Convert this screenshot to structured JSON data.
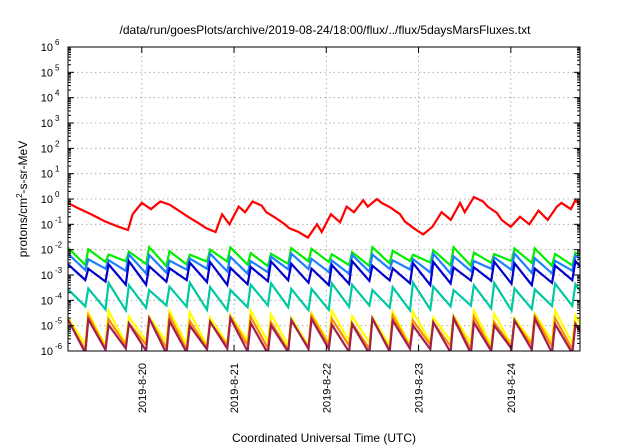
{
  "chart_data": {
    "type": "line",
    "title": "/data/run/goesPlots/archive/2019-08-24/18:00/flux/../flux/5daysMarsFluxes.txt",
    "xlabel": "Coordinated Universal Time (UTC)",
    "ylabel": "protons/cm2-s-sr-MeV",
    "ylabel_parts": {
      "pre": "protons/cm",
      "sup": "2",
      "post": "-s-sr-MeV"
    },
    "x_unit": "days since 2019-8-19 00:00 UTC",
    "xlim": [
      0.2,
      5.75
    ],
    "yscale": "log",
    "ylim": [
      1e-06,
      1000000.0
    ],
    "grid": true,
    "x_ticks": [
      {
        "x": 1,
        "label": "2019-8-20"
      },
      {
        "x": 2,
        "label": "2019-8-21"
      },
      {
        "x": 3,
        "label": "2019-8-22"
      },
      {
        "x": 4,
        "label": "2019-8-23"
      },
      {
        "x": 5,
        "label": "2019-8-24"
      }
    ],
    "y_ticks": [
      {
        "exp": -6,
        "base": "10",
        "sup": "-6"
      },
      {
        "exp": -5,
        "base": "10",
        "sup": "-5"
      },
      {
        "exp": -4,
        "base": "10",
        "sup": "-4"
      },
      {
        "exp": -3,
        "base": "10",
        "sup": "-3"
      },
      {
        "exp": -2,
        "base": "10",
        "sup": "-2"
      },
      {
        "exp": -1,
        "base": "10",
        "sup": "-1"
      },
      {
        "exp": 0,
        "base": "10",
        "sup": "0"
      },
      {
        "exp": 1,
        "base": "10",
        "sup": "1"
      },
      {
        "exp": 2,
        "base": "10",
        "sup": "2"
      },
      {
        "exp": 3,
        "base": "10",
        "sup": "3"
      },
      {
        "exp": 4,
        "base": "10",
        "sup": "4"
      },
      {
        "exp": 5,
        "base": "10",
        "sup": "5"
      },
      {
        "exp": 6,
        "base": "10",
        "sup": "6"
      }
    ],
    "series": [
      {
        "color": "#ff0000",
        "x": [
          0.2,
          0.3,
          0.45,
          0.6,
          0.75,
          0.85,
          0.9,
          1.0,
          1.1,
          1.2,
          1.3,
          1.4,
          1.5,
          1.6,
          1.7,
          1.8,
          1.87,
          1.95,
          2.05,
          2.12,
          2.2,
          2.3,
          2.35,
          2.45,
          2.55,
          2.6,
          2.7,
          2.8,
          2.9,
          2.95,
          3.05,
          3.15,
          3.22,
          3.3,
          3.4,
          3.45,
          3.55,
          3.6,
          3.7,
          3.8,
          3.85,
          3.95,
          4.05,
          4.15,
          4.25,
          4.35,
          4.45,
          4.5,
          4.6,
          4.7,
          4.75,
          4.85,
          4.9,
          5.0,
          5.1,
          5.2,
          5.3,
          5.4,
          5.5,
          5.55,
          5.65,
          5.7,
          5.75
        ],
        "values": [
          0.7,
          0.45,
          0.25,
          0.13,
          0.08,
          0.06,
          0.25,
          0.7,
          0.4,
          0.8,
          0.6,
          0.35,
          0.2,
          0.12,
          0.07,
          0.05,
          0.25,
          0.1,
          0.5,
          0.3,
          0.8,
          0.55,
          0.3,
          0.18,
          0.1,
          0.07,
          0.05,
          0.03,
          0.1,
          0.05,
          0.25,
          0.12,
          0.5,
          0.3,
          0.9,
          0.5,
          1.0,
          0.7,
          0.45,
          0.25,
          0.13,
          0.07,
          0.04,
          0.08,
          0.3,
          0.15,
          0.7,
          0.3,
          1.2,
          0.8,
          0.5,
          0.28,
          0.15,
          0.08,
          0.2,
          0.1,
          0.35,
          0.15,
          0.5,
          0.7,
          0.4,
          0.9,
          0.6
        ]
      },
      {
        "color": "#00ee00",
        "amp": [
          -2.05,
          -2.55
        ],
        "period": 0.22
      },
      {
        "color": "#1e7fff",
        "amp": [
          -2.3,
          -2.85
        ],
        "period": 0.22
      },
      {
        "color": "#0000cc",
        "amp": [
          -2.6,
          -3.3
        ],
        "period": 0.22
      },
      {
        "color": "#00c8a0",
        "amp": [
          -3.45,
          -4.3
        ],
        "period": 0.22
      },
      {
        "color": "#ffff00",
        "amp": [
          -4.55,
          -5.7
        ],
        "period": 0.22
      },
      {
        "color": "#ff8c00",
        "amp": [
          -4.75,
          -5.85
        ],
        "period": 0.22
      },
      {
        "color": "#a02050",
        "amp": [
          -4.85,
          -6.0
        ],
        "period": 0.22
      }
    ]
  }
}
